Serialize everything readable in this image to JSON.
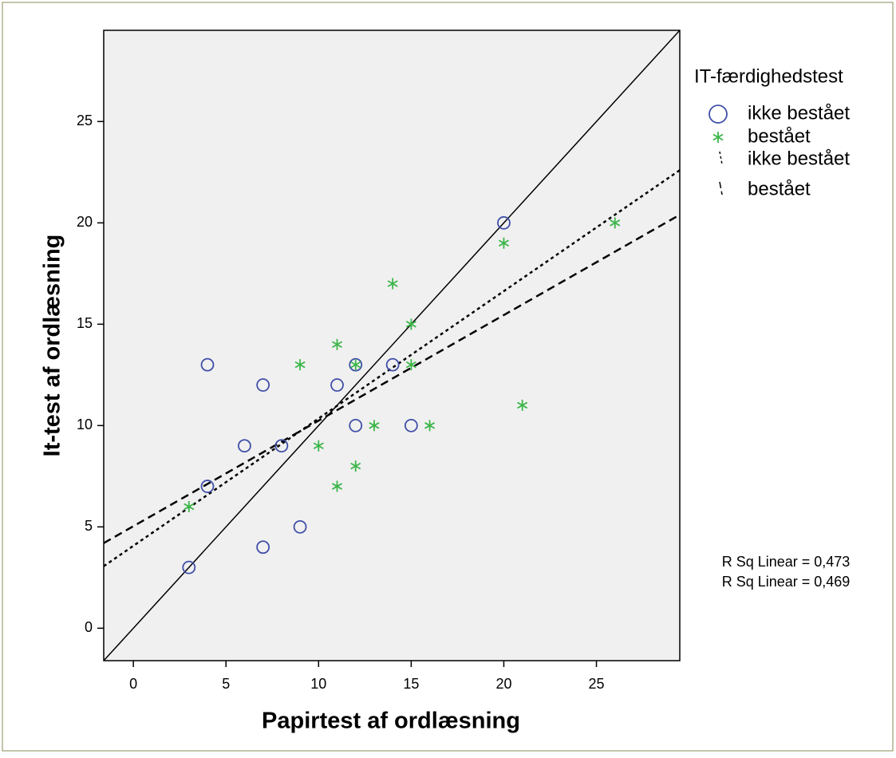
{
  "chart_data": {
    "type": "scatter",
    "x_label": "Papirtest af ordlæsning",
    "y_label": "It-test af ordlæsning",
    "legend_title": "IT-færdighedstest",
    "legend_position": "right",
    "xlim": [
      -1.6,
      29.5
    ],
    "ylim": [
      -1.6,
      29.5
    ],
    "xticks": [
      0,
      5,
      10,
      15,
      20,
      25
    ],
    "yticks": [
      0,
      5,
      10,
      15,
      20,
      25
    ],
    "grid": false,
    "series": [
      {
        "name": "ikke bestået",
        "color": "#3f4fa8",
        "marker": "circle",
        "x": [
          20,
          4,
          7,
          11,
          12,
          14,
          12,
          15,
          6,
          8,
          4,
          3,
          7,
          9
        ],
        "y": [
          20,
          13,
          12,
          12,
          13,
          13,
          10,
          10,
          9,
          9,
          7,
          3,
          4,
          5
        ]
      },
      {
        "name": "bestået",
        "color": "#3cb64a",
        "marker": "star",
        "x": [
          26,
          20,
          14,
          15,
          11,
          9,
          12,
          15,
          13,
          16,
          21,
          10,
          12,
          11,
          3
        ],
        "y": [
          20,
          19,
          17,
          15,
          14,
          13,
          13,
          13,
          10,
          10,
          11,
          9,
          8,
          7,
          6
        ]
      }
    ],
    "fit_lines": [
      {
        "name": "ikke bestået",
        "style": "dotted",
        "x": [
          -1.6,
          29.5
        ],
        "y": [
          3.06,
          22.6
        ]
      },
      {
        "name": "bestået",
        "style": "dashed",
        "x": [
          -1.6,
          29.5
        ],
        "y": [
          4.2,
          20.4
        ]
      }
    ],
    "reference_line": {
      "x": [
        -1.6,
        29.5
      ],
      "y": [
        -1.6,
        29.5
      ]
    },
    "annotations": [
      "R Sq Linear = 0,473",
      "R Sq Linear = 0,469"
    ]
  }
}
